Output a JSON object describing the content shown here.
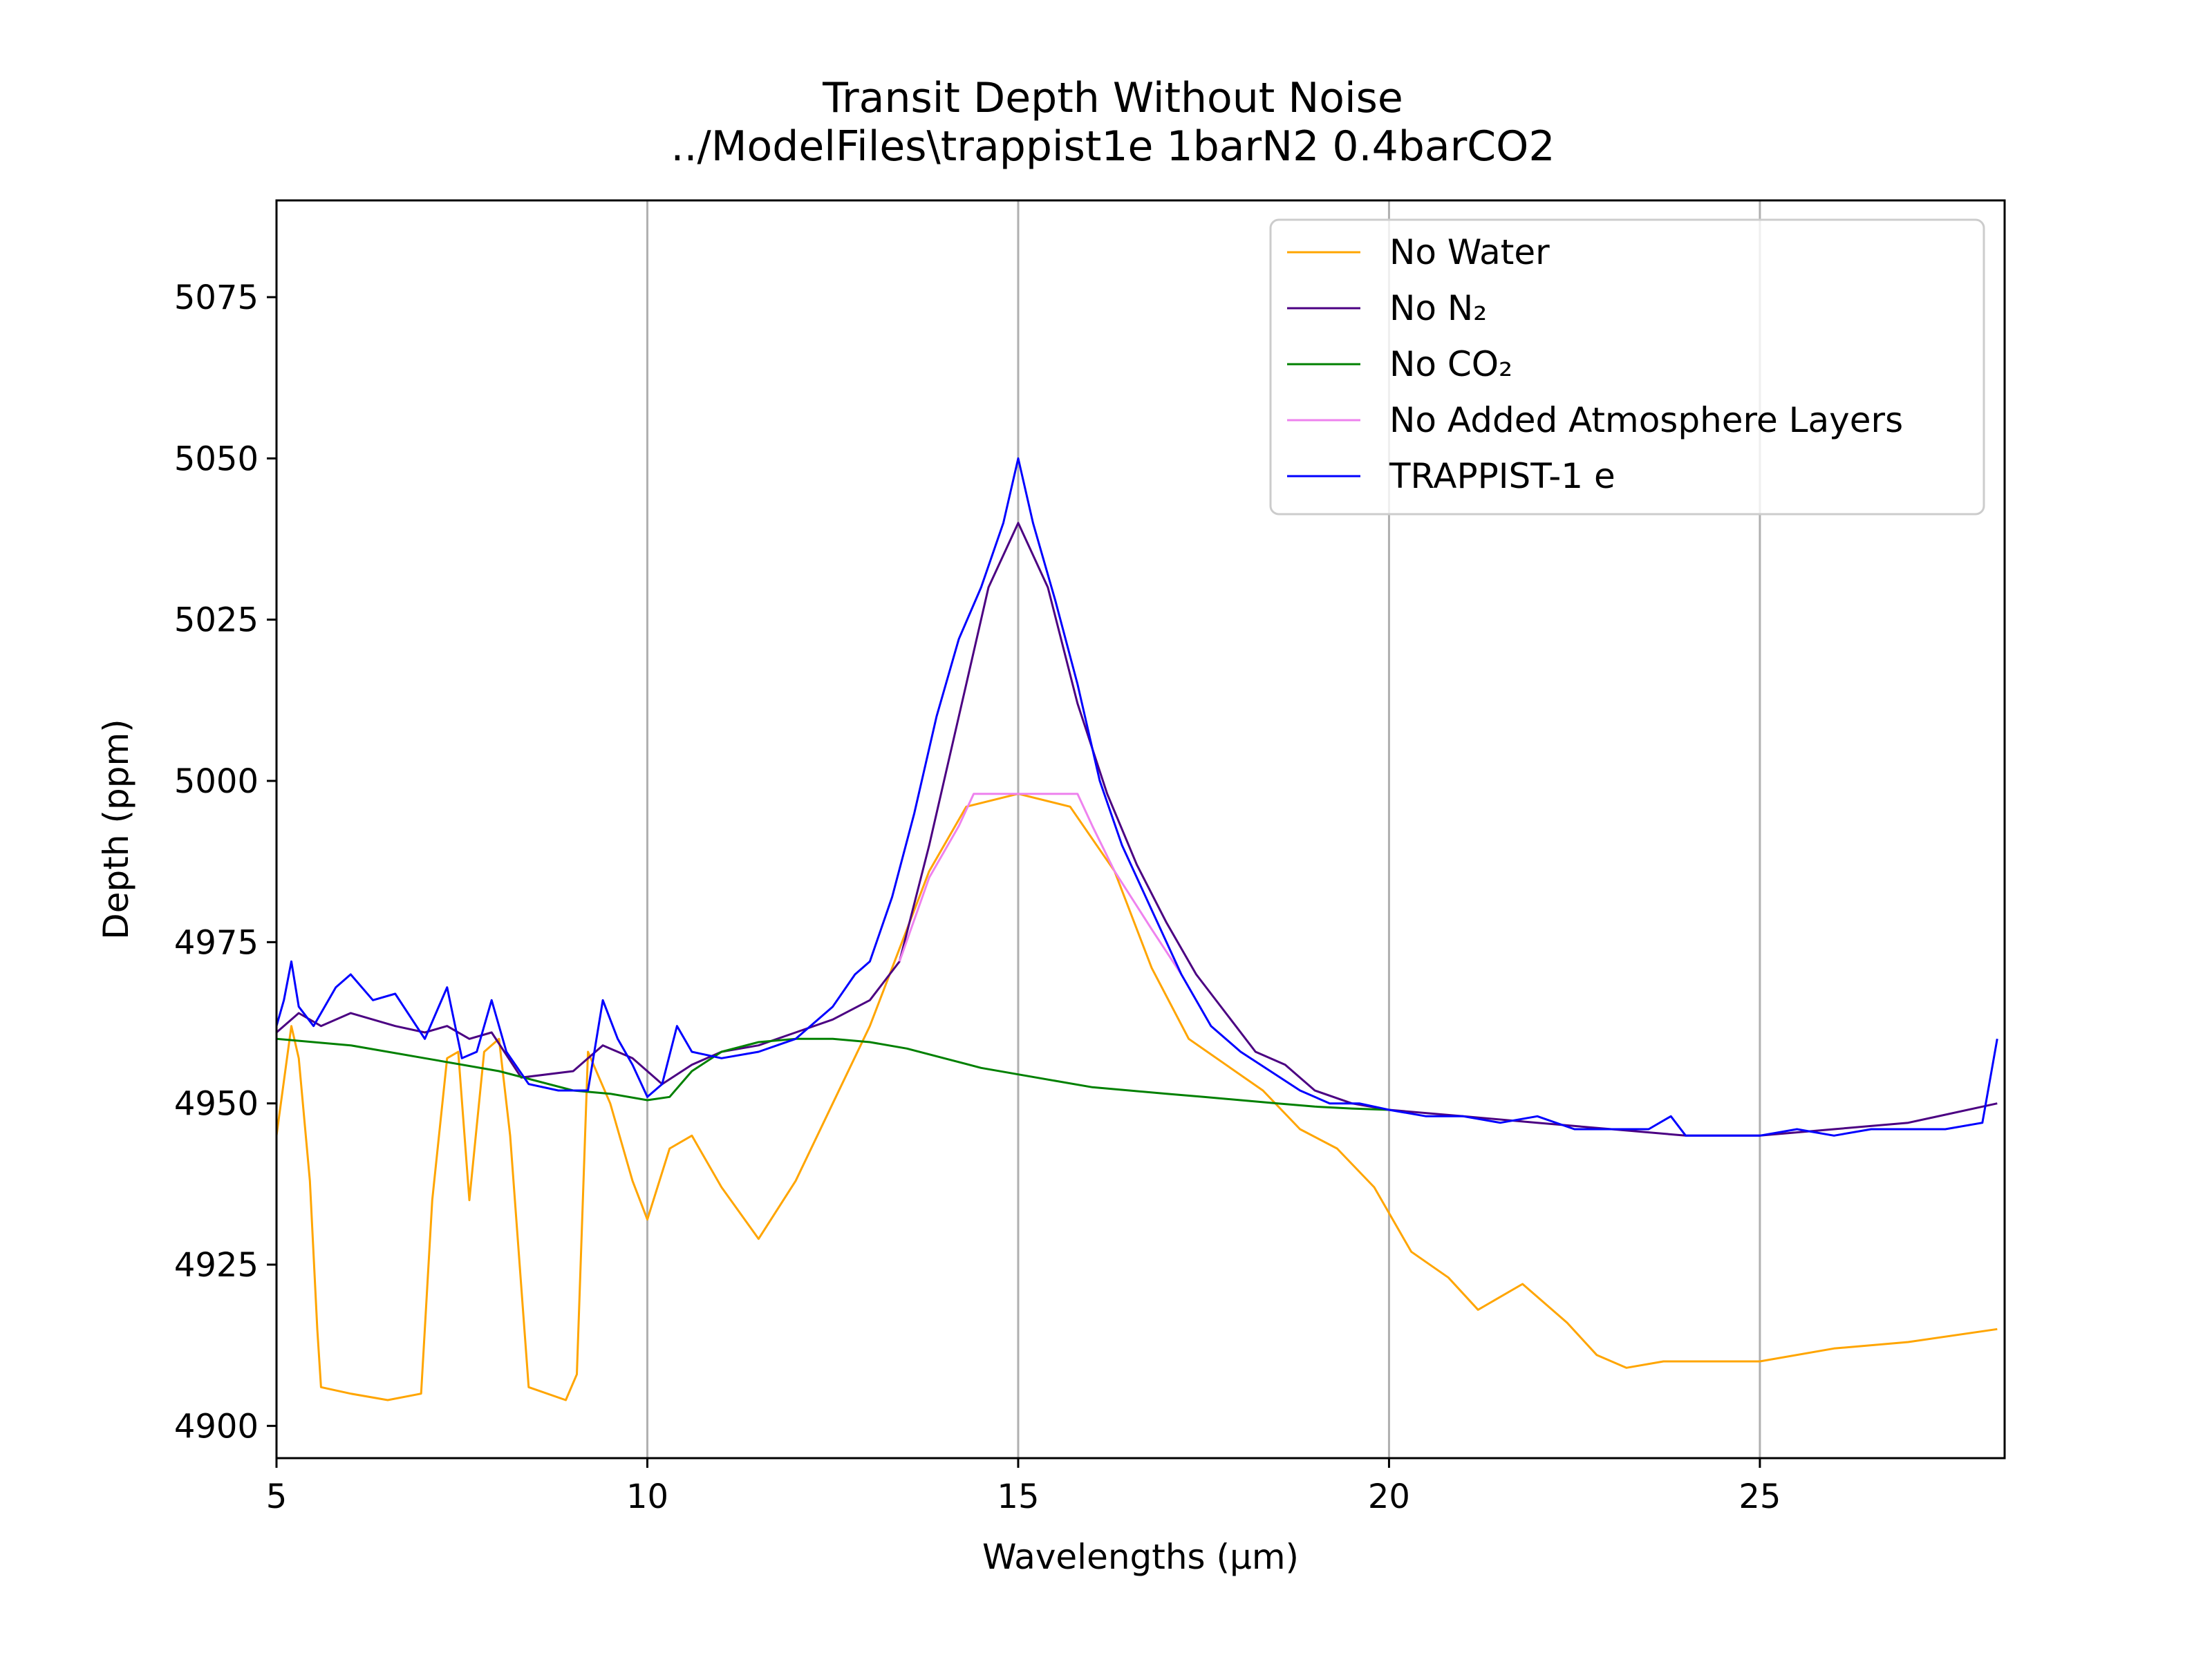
{
  "chart_data": {
    "type": "line",
    "title": "Transit Depth Without Noise",
    "subtitle": "../ModelFiles\\trappist1e 1barN2 0.4barCO2",
    "xlabel": "Wavelengths (μm)",
    "ylabel": "Depth (ppm)",
    "xlim": [
      5,
      28.3
    ],
    "ylim": [
      4895,
      5090
    ],
    "xticks": [
      "5",
      "10",
      "15",
      "20",
      "25"
    ],
    "yticks": [
      "4900",
      "4925",
      "4950",
      "4975",
      "5000",
      "5025",
      "5050",
      "5075"
    ],
    "grid": "x-major (vertical lines)",
    "legend_position": "top-right",
    "series": [
      {
        "name": "No Water",
        "color": "#ffa500",
        "x": [
          5.0,
          5.2,
          5.3,
          5.45,
          5.55,
          5.6,
          6.0,
          6.5,
          6.95,
          7.1,
          7.3,
          7.45,
          7.6,
          7.8,
          8.0,
          8.15,
          8.4,
          8.9,
          9.05,
          9.2,
          9.5,
          9.8,
          10.0,
          10.3,
          10.6,
          11.0,
          11.5,
          12.0,
          12.5,
          13.0,
          13.4,
          13.8,
          14.3,
          15.0,
          15.7,
          16.3,
          16.8,
          17.3,
          17.8,
          18.3,
          18.8,
          19.3,
          19.8,
          20.3,
          20.8,
          21.2,
          21.8,
          22.4,
          22.8,
          23.2,
          23.7,
          24.2,
          25.0,
          26.0,
          27.0,
          28.2
        ],
        "y": [
          4945,
          4962,
          4957,
          4938,
          4915,
          4906,
          4905,
          4904,
          4905,
          4935,
          4957,
          4958,
          4935,
          4958,
          4960,
          4945,
          4906,
          4904,
          4908,
          4958,
          4950,
          4938,
          4932,
          4943,
          4945,
          4937,
          4929,
          4938,
          4950,
          4962,
          4974,
          4986,
          4996,
          4998,
          4996,
          4986,
          4971,
          4960,
          4956,
          4952,
          4946,
          4943,
          4937,
          4927,
          4923,
          4918,
          4922,
          4916,
          4911,
          4909,
          4910,
          4910,
          4910,
          4912,
          4913,
          4915
        ]
      },
      {
        "name": "No N₂",
        "color": "#4b0082",
        "x": [
          5.0,
          5.3,
          5.6,
          6.0,
          6.6,
          7.0,
          7.3,
          7.6,
          7.9,
          8.3,
          9.0,
          9.4,
          9.8,
          10.2,
          10.6,
          11.0,
          11.5,
          12.0,
          12.5,
          13.0,
          13.4,
          13.8,
          14.2,
          14.6,
          15.0,
          15.4,
          15.8,
          16.2,
          16.6,
          17.0,
          17.4,
          17.8,
          18.2,
          18.6,
          19.0,
          19.5,
          20.0,
          21.0,
          22.0,
          23.0,
          24.0,
          25.0,
          26.0,
          27.0,
          28.2
        ],
        "y": [
          4961,
          4964,
          4962,
          4964,
          4962,
          4961,
          4962,
          4960,
          4961,
          4954,
          4955,
          4959,
          4957,
          4953,
          4956,
          4958,
          4959,
          4961,
          4963,
          4966,
          4972,
          4990,
          5010,
          5030,
          5040,
          5030,
          5012,
          4998,
          4987,
          4978,
          4970,
          4964,
          4958,
          4956,
          4952,
          4950,
          4949,
          4948,
          4947,
          4946,
          4945,
          4945,
          4946,
          4947,
          4950
        ]
      },
      {
        "name": "No CO₂",
        "color": "#008000",
        "x": [
          5.0,
          6.0,
          7.0,
          8.0,
          9.0,
          9.5,
          10.0,
          10.3,
          10.6,
          11.0,
          11.5,
          12.0,
          12.5,
          13.0,
          13.5,
          14.0,
          14.5,
          15.0,
          15.5,
          16.0,
          16.5,
          17.0,
          17.5,
          18.0,
          18.5,
          19.0,
          19.5,
          20.0
        ],
        "y": [
          4960,
          4959,
          4957,
          4955,
          4952,
          4951.5,
          4950.5,
          4951,
          4955,
          4958,
          4959.5,
          4960,
          4960,
          4959.5,
          4958.5,
          4957,
          4955.5,
          4954.5,
          4953.5,
          4952.5,
          4952,
          4951.5,
          4951,
          4950.5,
          4950,
          4949.5,
          4949.2,
          4949
        ]
      },
      {
        "name": "No Added Atmosphere Layers",
        "color": "#ee82ee",
        "x": [
          13.4,
          13.8,
          14.2,
          14.4,
          14.6,
          15.0,
          15.4,
          15.8,
          16.0,
          16.3,
          16.8,
          17.2
        ],
        "y": [
          4972,
          4985,
          4993,
          4998,
          4998,
          4998,
          4998,
          4998,
          4993,
          4986,
          4977,
          4970
        ]
      },
      {
        "name": "TRAPPIST-1 e",
        "color": "#0000ff",
        "x": [
          5.0,
          5.1,
          5.2,
          5.3,
          5.5,
          5.8,
          6.0,
          6.3,
          6.6,
          7.0,
          7.3,
          7.5,
          7.7,
          7.9,
          8.1,
          8.4,
          8.8,
          9.2,
          9.4,
          9.6,
          9.8,
          10.0,
          10.2,
          10.4,
          10.6,
          11.0,
          11.5,
          12.0,
          12.5,
          12.8,
          13.0,
          13.3,
          13.6,
          13.9,
          14.2,
          14.5,
          14.8,
          15.0,
          15.2,
          15.5,
          15.8,
          16.1,
          16.4,
          16.8,
          17.2,
          17.6,
          18.0,
          18.4,
          18.8,
          19.2,
          19.6,
          20.0,
          20.5,
          21.0,
          21.5,
          22.0,
          22.5,
          23.0,
          23.5,
          23.8,
          24.0,
          24.5,
          25.0,
          25.5,
          26.0,
          26.5,
          27.0,
          27.5,
          28.0,
          28.2
        ],
        "y": [
          4962,
          4966,
          4972,
          4965,
          4962,
          4968,
          4970,
          4966,
          4967,
          4960,
          4968,
          4957,
          4958,
          4966,
          4958,
          4953,
          4952,
          4952,
          4966,
          4960,
          4956,
          4951,
          4953,
          4962,
          4958,
          4957,
          4958,
          4960,
          4965,
          4970,
          4972,
          4982,
          4995,
          5010,
          5022,
          5030,
          5040,
          5050,
          5040,
          5028,
          5015,
          5000,
          4990,
          4980,
          4970,
          4962,
          4958,
          4955,
          4952,
          4950,
          4950,
          4949,
          4948,
          4948,
          4947,
          4948,
          4946,
          4946,
          4946,
          4948,
          4945,
          4945,
          4945,
          4946,
          4945,
          4946,
          4946,
          4946,
          4947,
          4960
        ]
      }
    ]
  }
}
